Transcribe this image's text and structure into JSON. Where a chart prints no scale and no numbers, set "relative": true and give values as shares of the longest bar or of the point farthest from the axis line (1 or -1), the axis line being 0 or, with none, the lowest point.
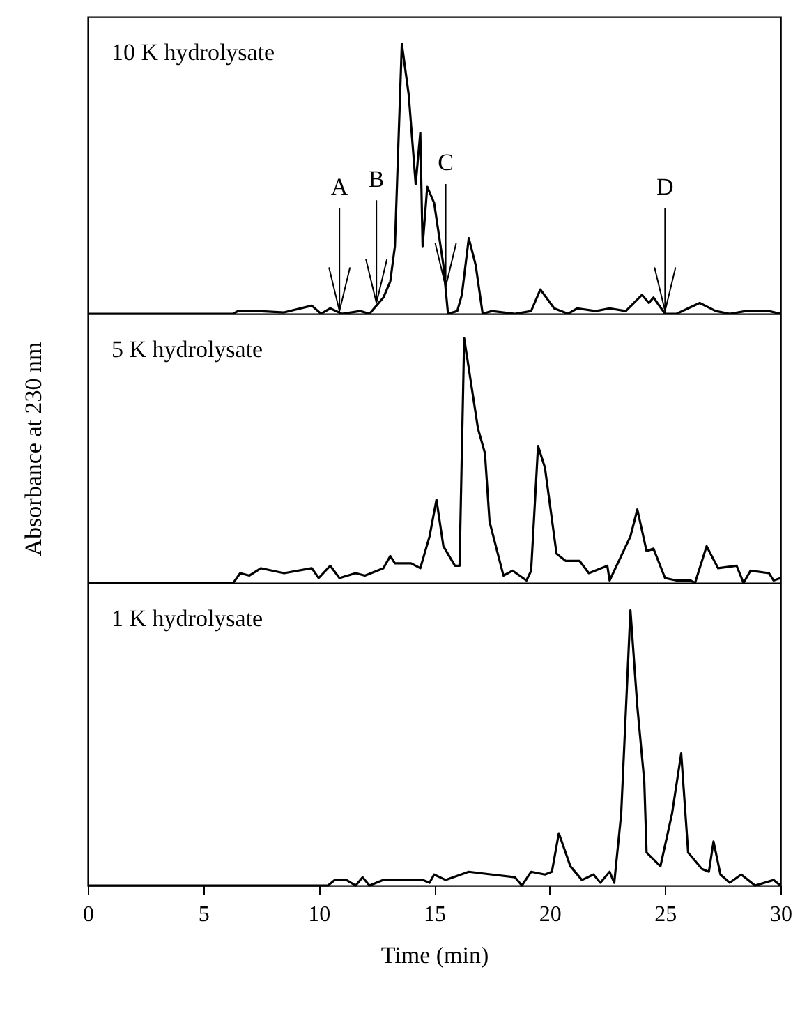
{
  "chart_data": [
    {
      "type": "line",
      "relative": true,
      "xlim": [
        0,
        30
      ],
      "xticks": [
        0,
        5,
        10,
        15,
        20,
        25,
        30
      ],
      "tick_labels": false,
      "x": [
        0,
        6.3,
        6.5,
        7.4,
        8.5,
        9.7,
        10.1,
        10.5,
        11,
        11.8,
        12.2,
        12.8,
        13.1,
        13.3,
        13.6,
        13.9,
        14.2,
        14.4,
        14.5,
        14.7,
        15.0,
        15.4,
        15.6,
        16.0,
        16.2,
        16.5,
        16.8,
        17.1,
        17.5,
        18.5,
        19.2,
        19.6,
        20.2,
        20.8,
        21.2,
        22.0,
        22.6,
        23.3,
        24.0,
        24.3,
        24.5,
        25.0,
        25.5,
        26.5,
        27.2,
        27.8,
        28.5,
        29.5,
        30
      ],
      "series": [
        {
          "color": "#000000",
          "values": [
            0,
            0,
            0.01,
            0.01,
            0.005,
            0.03,
            0,
            0.02,
            0,
            0.01,
            0,
            0.06,
            0.12,
            0.25,
            1.0,
            0.81,
            0.48,
            0.67,
            0.25,
            0.47,
            0.41,
            0.18,
            0,
            0.01,
            0.07,
            0.28,
            0.18,
            0,
            0.01,
            0,
            0.01,
            0.09,
            0.02,
            0,
            0.02,
            0.01,
            0.02,
            0.01,
            0.07,
            0.04,
            0.06,
            0,
            0,
            0.04,
            0.01,
            0,
            0.01,
            0.01,
            0
          ]
        }
      ],
      "annotations": [
        "10 K hydrolysate",
        {
          "text": "A",
          "x": 10.9,
          "y": 0
        },
        {
          "text": "B",
          "x": 12.5,
          "y": 0.03
        },
        {
          "text": "C",
          "x": 15.5,
          "y": 0.09
        },
        {
          "text": "D",
          "x": 25.0,
          "y": 0
        }
      ]
    },
    {
      "type": "line",
      "relative": true,
      "xlim": [
        0,
        30
      ],
      "xticks": [
        0,
        5,
        10,
        15,
        20,
        25,
        30
      ],
      "tick_labels": false,
      "ylabel": "Absorbance at 230 nm",
      "x": [
        0,
        6.3,
        6.6,
        7.0,
        7.5,
        8.5,
        9.7,
        10.0,
        10.5,
        10.9,
        11.6,
        12.0,
        12.8,
        13.1,
        13.3,
        14.0,
        14.4,
        14.8,
        15.1,
        15.4,
        15.9,
        16.1,
        16.3,
        16.9,
        17.2,
        17.4,
        18.0,
        18.4,
        19.0,
        19.2,
        19.5,
        19.8,
        20.3,
        20.7,
        21.3,
        21.7,
        22.5,
        22.6,
        23.5,
        23.8,
        24.2,
        24.5,
        25.0,
        25.5,
        26.1,
        26.3,
        26.8,
        27.3,
        28.1,
        28.4,
        28.7,
        29.5,
        29.7,
        30
      ],
      "series": [
        {
          "color": "#000000",
          "values": [
            0,
            0,
            0.04,
            0.03,
            0.06,
            0.04,
            0.06,
            0.02,
            0.07,
            0.02,
            0.04,
            0.03,
            0.06,
            0.11,
            0.08,
            0.08,
            0.06,
            0.19,
            0.34,
            0.15,
            0.07,
            0.07,
            1.0,
            0.63,
            0.53,
            0.25,
            0.03,
            0.05,
            0.01,
            0.05,
            0.56,
            0.47,
            0.12,
            0.09,
            0.09,
            0.04,
            0.07,
            0.01,
            0.19,
            0.3,
            0.13,
            0.14,
            0.02,
            0.01,
            0.01,
            0,
            0.15,
            0.06,
            0.07,
            0,
            0.05,
            0.04,
            0.01,
            0.02
          ]
        }
      ],
      "annotations": [
        "5 K hydrolysate"
      ]
    },
    {
      "type": "line",
      "relative": true,
      "xlim": [
        0,
        30
      ],
      "xticks": [
        0,
        5,
        10,
        15,
        20,
        25,
        30
      ],
      "tick_labels": "x",
      "xlabel": "Time (min)",
      "x": [
        0,
        10.4,
        10.7,
        11.2,
        11.6,
        11.9,
        12.2,
        12.8,
        14.5,
        14.8,
        15.0,
        15.5,
        16.5,
        17.5,
        18.5,
        18.8,
        19.2,
        19.8,
        20.1,
        20.4,
        20.9,
        21.4,
        21.9,
        22.2,
        22.6,
        22.8,
        23.1,
        23.5,
        23.8,
        24.1,
        24.2,
        24.8,
        25.3,
        25.7,
        26.0,
        26.6,
        26.9,
        27.1,
        27.4,
        27.8,
        28.3,
        28.9,
        29.7,
        30
      ],
      "series": [
        {
          "color": "#000000",
          "values": [
            0,
            0,
            0.02,
            0.02,
            0,
            0.03,
            0,
            0.02,
            0.02,
            0.01,
            0.04,
            0.02,
            0.05,
            0.04,
            0.03,
            0,
            0.05,
            0.04,
            0.05,
            0.19,
            0.07,
            0.02,
            0.04,
            0.01,
            0.05,
            0.01,
            0.26,
            1.0,
            0.65,
            0.38,
            0.12,
            0.07,
            0.26,
            0.48,
            0.12,
            0.06,
            0.05,
            0.16,
            0.04,
            0.01,
            0.04,
            0,
            0.02,
            0
          ]
        }
      ],
      "annotations": [
        "1 K hydrolysate"
      ]
    }
  ]
}
